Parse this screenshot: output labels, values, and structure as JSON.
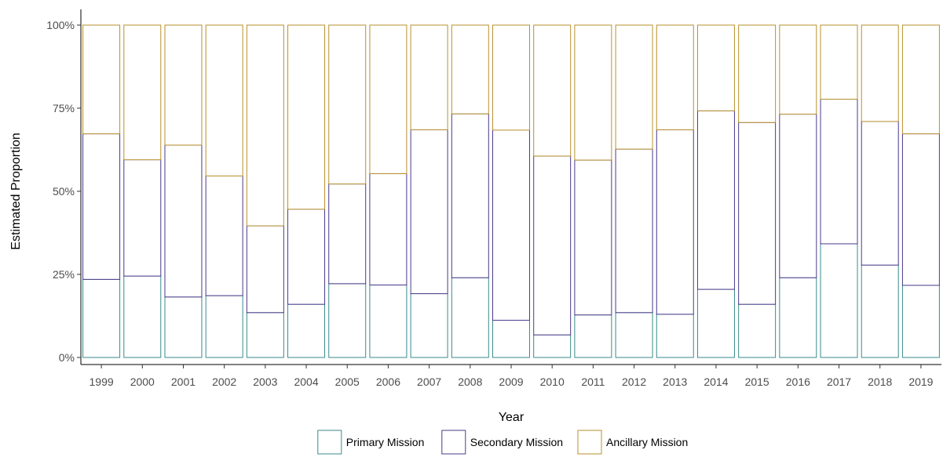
{
  "chart_data": {
    "type": "bar",
    "stacked": true,
    "xlabel": "Year",
    "ylabel": "Estimated Proportion",
    "ylim": [
      0,
      1
    ],
    "y_ticks": [
      "0%",
      "25%",
      "50%",
      "75%",
      "100%"
    ],
    "y_tick_values": [
      0,
      0.25,
      0.5,
      0.75,
      1
    ],
    "grid": false,
    "legend_position": "bottom",
    "categories": [
      "1999",
      "2000",
      "2001",
      "2002",
      "2003",
      "2004",
      "2005",
      "2006",
      "2007",
      "2008",
      "2009",
      "2010",
      "2011",
      "2012",
      "2013",
      "2014",
      "2015",
      "2016",
      "2017",
      "2018",
      "2019"
    ],
    "series": [
      {
        "name": "Primary Mission",
        "color": "#3b8a8a",
        "values": [
          0.235,
          0.245,
          0.182,
          0.186,
          0.135,
          0.16,
          0.222,
          0.218,
          0.192,
          0.24,
          0.112,
          0.068,
          0.128,
          0.135,
          0.13,
          0.205,
          0.16,
          0.24,
          0.342,
          0.278,
          0.217
        ]
      },
      {
        "name": "Secondary Mission",
        "color": "#4a3a8a",
        "values": [
          0.438,
          0.35,
          0.457,
          0.36,
          0.261,
          0.286,
          0.3,
          0.335,
          0.493,
          0.493,
          0.572,
          0.538,
          0.466,
          0.492,
          0.555,
          0.537,
          0.547,
          0.492,
          0.435,
          0.432,
          0.456
        ]
      },
      {
        "name": "Ancillary Mission",
        "color": "#b8912e",
        "values": [
          0.327,
          0.405,
          0.361,
          0.454,
          0.604,
          0.554,
          0.478,
          0.447,
          0.315,
          0.267,
          0.316,
          0.394,
          0.406,
          0.373,
          0.315,
          0.258,
          0.293,
          0.268,
          0.223,
          0.29,
          0.327
        ]
      }
    ]
  }
}
